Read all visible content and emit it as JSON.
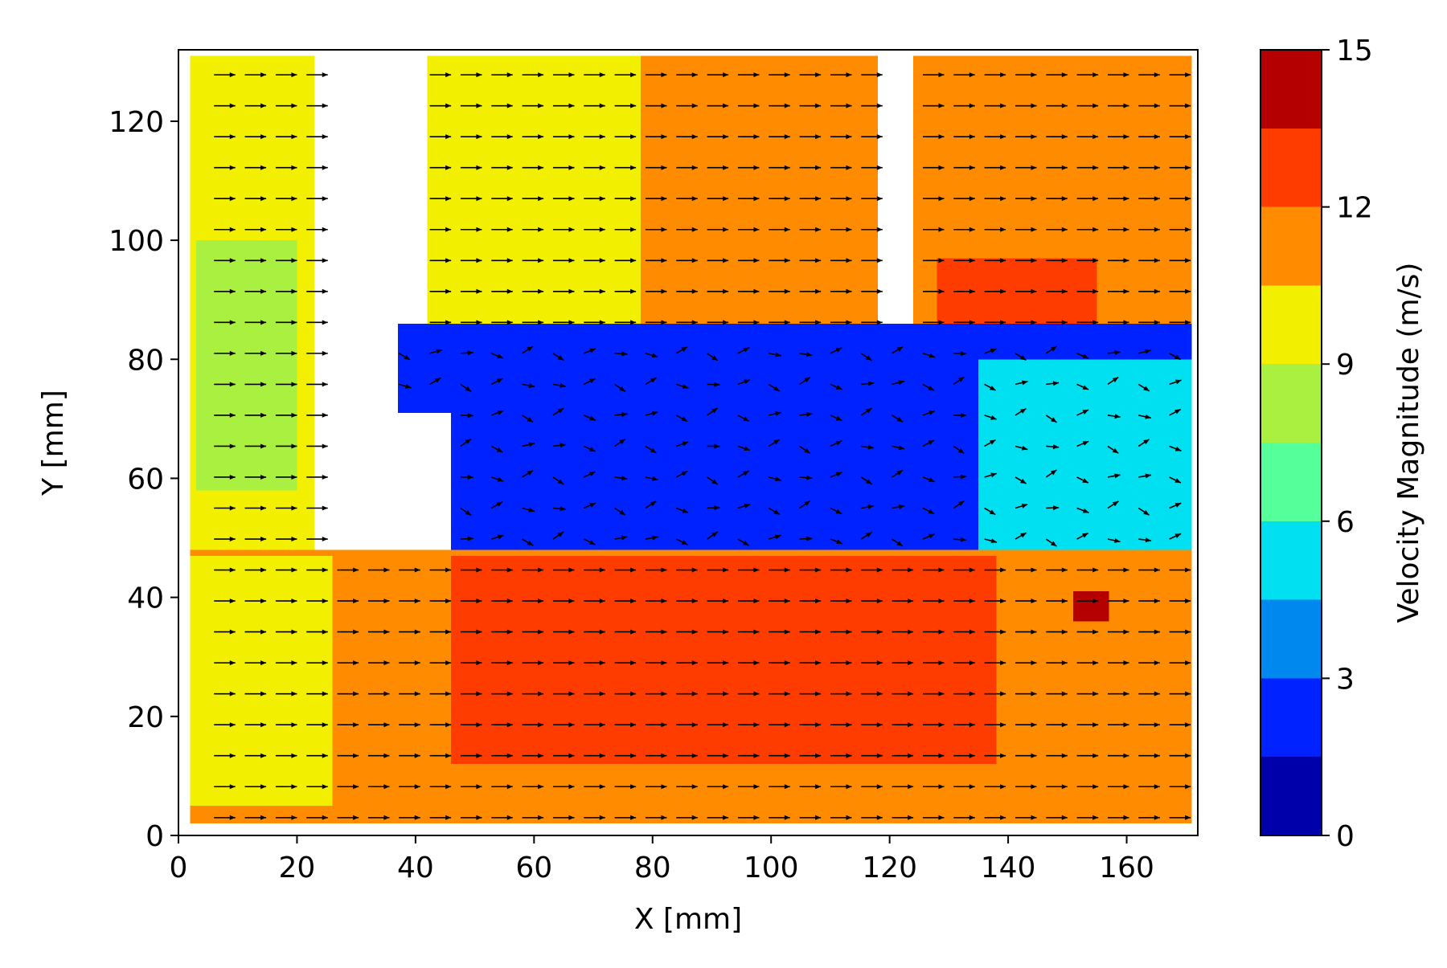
{
  "chart_data": {
    "type": "heatmap",
    "subtype": "filled-contour with velocity vector field (quiver)",
    "xlabel": "X [mm]",
    "ylabel": "Y [mm]",
    "xlim": [
      0,
      172
    ],
    "ylim": [
      0,
      132
    ],
    "xticks": [
      0,
      20,
      40,
      60,
      80,
      100,
      120,
      140,
      160
    ],
    "yticks": [
      0,
      20,
      40,
      60,
      80,
      100,
      120
    ],
    "colorbar": {
      "label": "Velocity Magnitude (m/s)",
      "range": [
        0,
        15
      ],
      "ticks": [
        0,
        3,
        6,
        9,
        12,
        15
      ],
      "levels": [
        0,
        1.5,
        3,
        4.5,
        6,
        7.5,
        9,
        10.5,
        12,
        13.5,
        15
      ],
      "colors": [
        "#0000aa",
        "#0022ff",
        "#0088ee",
        "#00e0f0",
        "#55ff99",
        "#aaf040",
        "#f2f000",
        "#ff8c00",
        "#ff3c00",
        "#b40000"
      ]
    },
    "regions": [
      {
        "zone": "left narrow jet, upper part",
        "x": [
          2,
          23
        ],
        "y": [
          48,
          131
        ],
        "velocity_ms": 9.5
      },
      {
        "zone": "left narrow jet, green core",
        "x": [
          3,
          20
        ],
        "y": [
          58,
          100
        ],
        "velocity_ms": 8.3
      },
      {
        "zone": "middle upper jet, left half",
        "x": [
          42,
          78
        ],
        "y": [
          76,
          131
        ],
        "velocity_ms": 9.8
      },
      {
        "zone": "middle upper jet, right half",
        "x": [
          78,
          118
        ],
        "y": [
          84,
          131
        ],
        "velocity_ms": 11.2
      },
      {
        "zone": "right upper jet",
        "x": [
          124,
          171
        ],
        "y": [
          85,
          131
        ],
        "velocity_ms": 11.3
      },
      {
        "zone": "right upper jet, high-speed pocket",
        "x": [
          128,
          155
        ],
        "y": [
          84,
          97
        ],
        "velocity_ms": 12.5
      },
      {
        "zone": "wake / low-speed region",
        "x": [
          46,
          171
        ],
        "y": [
          44,
          86
        ],
        "velocity_ms": 1.5
      },
      {
        "zone": "wake recovery, right",
        "x": [
          135,
          171
        ],
        "y": [
          40,
          80
        ],
        "velocity_ms": 5
      },
      {
        "zone": "small low-speed pocket",
        "x": [
          37,
          50
        ],
        "y": [
          71,
          86
        ],
        "velocity_ms": 1.5
      },
      {
        "zone": "lower main jet",
        "x": [
          2,
          171
        ],
        "y": [
          2,
          48
        ],
        "velocity_ms": 11
      },
      {
        "zone": "lower main jet, core",
        "x": [
          46,
          138
        ],
        "y": [
          12,
          47
        ],
        "velocity_ms": 12.5
      },
      {
        "zone": "lower main jet, left edge",
        "x": [
          2,
          26
        ],
        "y": [
          5,
          47
        ],
        "velocity_ms": 9.5
      },
      {
        "zone": "peak pocket",
        "x": [
          151,
          157
        ],
        "y": [
          36,
          41
        ],
        "velocity_ms": 14
      }
    ],
    "vector_field": {
      "dominant_direction": "+X",
      "x_range": [
        6,
        171
      ],
      "y_range": [
        3,
        128
      ],
      "note": "arrows mostly point in +X, short/irregular within the wake region"
    }
  }
}
